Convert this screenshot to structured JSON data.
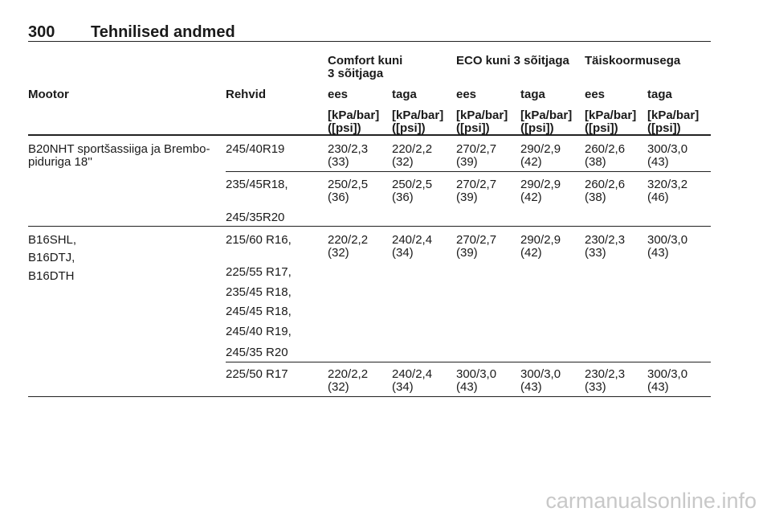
{
  "header": {
    "page_number": "300",
    "title": "Tehnilised andmed"
  },
  "table": {
    "group_headers": [
      "Comfort kuni\n3 sõitjaga",
      "ECO kuni 3 sõitjaga",
      "Täiskoormusega"
    ],
    "columns": [
      "Mootor",
      "Rehvid",
      "ees",
      "taga",
      "ees",
      "taga",
      "ees",
      "taga"
    ],
    "units": [
      "[kPa/bar]\n([psi])",
      "[kPa/bar]\n([psi])",
      "[kPa/bar]\n([psi])",
      "[kPa/bar]\n([psi])",
      "[kPa/bar]\n([psi])",
      "[kPa/bar]\n([psi])"
    ],
    "rows": [
      {
        "engine": [
          "B20NHT sportšassiiga ja Brembo-\npiduriga 18''"
        ],
        "tyres": [
          "245/40R19"
        ],
        "values": [
          "230/2,3\n(33)",
          "220/2,2\n(32)",
          "270/2,7\n(39)",
          "290/2,9\n(42)",
          "260/2,6\n(38)",
          "300/3,0\n(43)"
        ]
      },
      {
        "engine": [],
        "tyres": [
          "235/45R18,",
          "245/35R20"
        ],
        "values": [
          "250/2,5\n(36)",
          "250/2,5\n(36)",
          "270/2,7\n(39)",
          "290/2,9\n(42)",
          "260/2,6\n(38)",
          "320/3,2\n(46)"
        ]
      },
      {
        "engine": [
          "B16SHL,",
          "B16DTJ,",
          "B16DTH"
        ],
        "tyres": [
          "215/60 R16,",
          "225/55 R17,",
          "235/45 R18,",
          "245/45 R18,",
          "245/40 R19,",
          "245/35 R20"
        ],
        "values": [
          "220/2,2\n(32)",
          "240/2,4\n(34)",
          "270/2,7\n(39)",
          "290/2,9\n(42)",
          "230/2,3\n(33)",
          "300/3,0\n(43)"
        ]
      },
      {
        "engine": [],
        "tyres": [
          "225/50 R17"
        ],
        "values": [
          "220/2,2\n(32)",
          "240/2,4\n(34)",
          "300/3,0\n(43)",
          "300/3,0\n(43)",
          "230/2,3\n(33)",
          "300/3,0\n(43)"
        ]
      }
    ]
  },
  "watermark": "carmanualsonline.info"
}
